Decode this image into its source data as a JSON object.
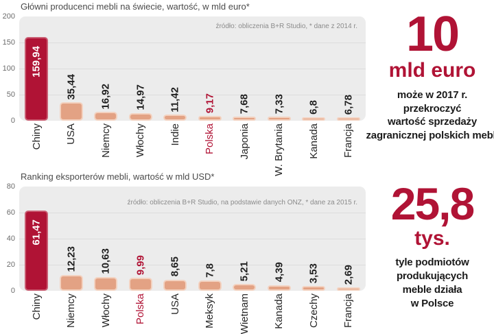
{
  "colors": {
    "accent": "#b01335",
    "bar_fill": "#e3a284",
    "bar_border": "#f3d2c0",
    "plot_bg": "#ececec",
    "grid_line": "#dcdcdc",
    "text_dark": "#1f1f1f",
    "title_gray": "#4a4a4a",
    "tick_gray": "#6b6b6b",
    "source_gray": "#8b8b8b"
  },
  "chart_data": [
    {
      "type": "bar",
      "title": "Główni producenci mebli na świecie, wartość, w mld euro*",
      "source": "źródło: obliczenia B+R Studio, * dane z 2014 r.",
      "categories": [
        "Chiny",
        "USA",
        "Niemcy",
        "Włochy",
        "Indie",
        "Polska",
        "Japonia",
        "W. Brytania",
        "Kanada",
        "Francja"
      ],
      "values": [
        159.94,
        35.44,
        16.92,
        14.97,
        11.42,
        9.17,
        7.68,
        7.33,
        6.8,
        6.78
      ],
      "value_labels": [
        "159,94",
        "35,44",
        "16,92",
        "14,97",
        "11,42",
        "9,17",
        "7,68",
        "7,33",
        "6,8",
        "6,78"
      ],
      "ylim": [
        0,
        200
      ],
      "yticks": [
        "200",
        "150",
        "100",
        "50",
        "0"
      ],
      "grid": true,
      "legend": "none",
      "highlight_bar_index": 0,
      "accent_label_index": 5
    },
    {
      "type": "bar",
      "title": "Ranking eksporterów mebli, wartość w mld USD*",
      "source": "źródło: obliczenia B+R Studio, na podstawie danych ONZ, * dane za 2015 r.",
      "categories": [
        "Chiny",
        "Niemcy",
        "Włochy",
        "Polska",
        "USA",
        "Meksyk",
        "Wietnam",
        "Kanada",
        "Czechy",
        "Francja"
      ],
      "values": [
        61.47,
        12.23,
        10.63,
        9.99,
        8.65,
        7.8,
        5.21,
        4.39,
        3.53,
        2.69
      ],
      "value_labels": [
        "61,47",
        "12,23",
        "10,63",
        "9,99",
        "8,65",
        "7,8",
        "5,21",
        "4,39",
        "3,53",
        "2,69"
      ],
      "ylim": [
        0,
        80
      ],
      "yticks": [
        "80",
        "60",
        "40",
        "20",
        "0"
      ],
      "grid": true,
      "legend": "none",
      "highlight_bar_index": 0,
      "accent_label_index": 3
    }
  ],
  "stats": [
    {
      "value": "10",
      "unit": "mld euro",
      "description": "może w 2017 r.\nprzekroczyć\nwartość sprzedaży\nzagranicznej polskich mebli"
    },
    {
      "value": "25,8",
      "unit": "tys.",
      "description": "tyle podmiotów\nprodukujących\nmeble działa\nw Polsce"
    }
  ]
}
